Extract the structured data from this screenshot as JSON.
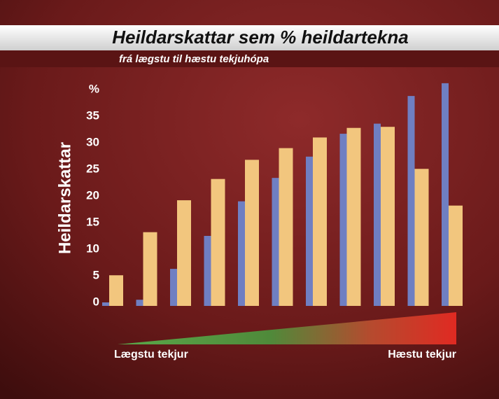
{
  "chart_data": {
    "type": "bar",
    "title": "Heildarskattar sem % heildartekna",
    "subtitle": "frá lægstu til hæstu tekjuhópa",
    "y_label": "Heildarskattar",
    "annotations": [
      "Lægstu tekjur",
      "Hæstu tekjur"
    ],
    "categories": [
      null,
      null,
      null,
      null,
      null,
      null,
      null,
      null,
      null,
      null,
      null
    ],
    "series": [
      {
        "color": "#6f7fc2",
        "values": [
          0,
          0.5,
          6.3,
          12.5,
          19,
          23.4,
          27.4,
          31.7,
          33.6,
          38.8,
          41.2
        ]
      },
      {
        "color": "#f2c67e",
        "values": [
          5.1,
          13.2,
          19.2,
          23.2,
          26.8,
          29,
          31,
          32.8,
          33,
          25.1,
          18.2
        ]
      }
    ],
    "ylim": [
      0,
      42
    ],
    "yticks": [
      0,
      5,
      10,
      15,
      20,
      25,
      30,
      35,
      {
        "value": 40,
        "label": "%"
      }
    ],
    "grid": false
  }
}
